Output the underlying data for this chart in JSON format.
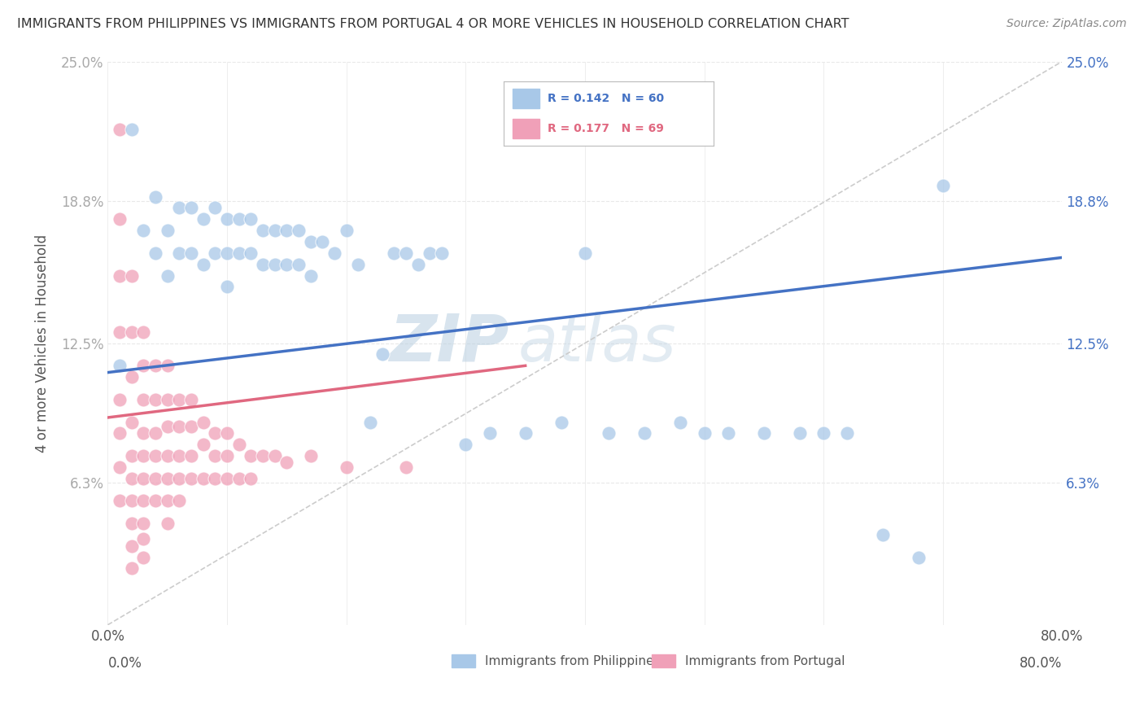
{
  "title": "IMMIGRANTS FROM PHILIPPINES VS IMMIGRANTS FROM PORTUGAL 4 OR MORE VEHICLES IN HOUSEHOLD CORRELATION CHART",
  "source": "Source: ZipAtlas.com",
  "ylabel": "4 or more Vehicles in Household",
  "xlim": [
    0.0,
    0.8
  ],
  "ylim": [
    0.0,
    0.25
  ],
  "yticks": [
    0.063,
    0.125,
    0.188,
    0.25
  ],
  "ytick_labels": [
    "6.3%",
    "12.5%",
    "18.8%",
    "25.0%"
  ],
  "xticks": [
    0.0,
    0.1,
    0.2,
    0.3,
    0.4,
    0.5,
    0.6,
    0.7,
    0.8
  ],
  "background_color": "#ffffff",
  "grid_color": "#e8e8e8",
  "blue_color": "#a8c8e8",
  "pink_color": "#f0a0b8",
  "blue_line_color": "#4472c4",
  "pink_line_color": "#e06880",
  "watermark_text": "ZIP atlas",
  "philippines_R": 0.142,
  "philippines_N": 60,
  "portugal_R": 0.177,
  "portugal_N": 69,
  "philippines_x": [
    0.01,
    0.02,
    0.03,
    0.04,
    0.04,
    0.05,
    0.05,
    0.06,
    0.06,
    0.07,
    0.07,
    0.08,
    0.08,
    0.09,
    0.09,
    0.1,
    0.1,
    0.1,
    0.11,
    0.11,
    0.12,
    0.12,
    0.13,
    0.13,
    0.14,
    0.14,
    0.15,
    0.15,
    0.16,
    0.16,
    0.17,
    0.17,
    0.18,
    0.19,
    0.2,
    0.21,
    0.22,
    0.23,
    0.24,
    0.25,
    0.26,
    0.27,
    0.28,
    0.3,
    0.32,
    0.35,
    0.38,
    0.4,
    0.42,
    0.45,
    0.48,
    0.5,
    0.52,
    0.55,
    0.58,
    0.6,
    0.62,
    0.65,
    0.68,
    0.7
  ],
  "philippines_y": [
    0.115,
    0.22,
    0.175,
    0.19,
    0.165,
    0.175,
    0.155,
    0.185,
    0.165,
    0.185,
    0.165,
    0.18,
    0.16,
    0.185,
    0.165,
    0.18,
    0.165,
    0.15,
    0.18,
    0.165,
    0.18,
    0.165,
    0.175,
    0.16,
    0.175,
    0.16,
    0.175,
    0.16,
    0.175,
    0.16,
    0.17,
    0.155,
    0.17,
    0.165,
    0.175,
    0.16,
    0.09,
    0.12,
    0.165,
    0.165,
    0.16,
    0.165,
    0.165,
    0.08,
    0.085,
    0.085,
    0.09,
    0.165,
    0.085,
    0.085,
    0.09,
    0.085,
    0.085,
    0.085,
    0.085,
    0.085,
    0.085,
    0.04,
    0.03,
    0.195
  ],
  "portugal_x": [
    0.01,
    0.01,
    0.01,
    0.01,
    0.01,
    0.01,
    0.01,
    0.01,
    0.02,
    0.02,
    0.02,
    0.02,
    0.02,
    0.02,
    0.02,
    0.02,
    0.02,
    0.02,
    0.03,
    0.03,
    0.03,
    0.03,
    0.03,
    0.03,
    0.03,
    0.03,
    0.03,
    0.03,
    0.04,
    0.04,
    0.04,
    0.04,
    0.04,
    0.04,
    0.05,
    0.05,
    0.05,
    0.05,
    0.05,
    0.05,
    0.05,
    0.06,
    0.06,
    0.06,
    0.06,
    0.06,
    0.07,
    0.07,
    0.07,
    0.07,
    0.08,
    0.08,
    0.08,
    0.09,
    0.09,
    0.09,
    0.1,
    0.1,
    0.1,
    0.11,
    0.11,
    0.12,
    0.12,
    0.13,
    0.14,
    0.15,
    0.17,
    0.2,
    0.25
  ],
  "portugal_y": [
    0.22,
    0.18,
    0.155,
    0.13,
    0.1,
    0.085,
    0.07,
    0.055,
    0.155,
    0.13,
    0.11,
    0.09,
    0.075,
    0.065,
    0.055,
    0.045,
    0.035,
    0.025,
    0.13,
    0.115,
    0.1,
    0.085,
    0.075,
    0.065,
    0.055,
    0.045,
    0.038,
    0.03,
    0.115,
    0.1,
    0.085,
    0.075,
    0.065,
    0.055,
    0.115,
    0.1,
    0.088,
    0.075,
    0.065,
    0.055,
    0.045,
    0.1,
    0.088,
    0.075,
    0.065,
    0.055,
    0.1,
    0.088,
    0.075,
    0.065,
    0.09,
    0.08,
    0.065,
    0.085,
    0.075,
    0.065,
    0.085,
    0.075,
    0.065,
    0.08,
    0.065,
    0.075,
    0.065,
    0.075,
    0.075,
    0.072,
    0.075,
    0.07,
    0.07
  ]
}
